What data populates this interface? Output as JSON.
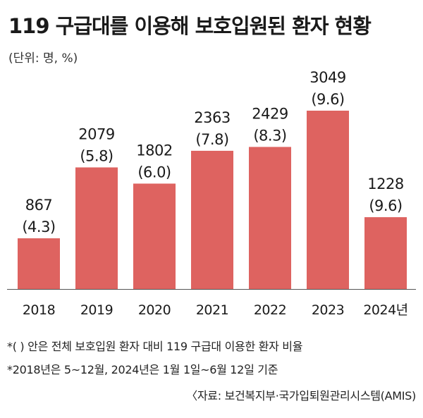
{
  "title": "119 구급대를 이용해 보호입원된 환자 현황",
  "unit": "(단위: 명, %)",
  "notes": [
    "*(  ) 안은 전체 보호입원 환자 대비 119 구급대 이용한 환자 비율",
    "*2018년은 5~12월, 2024년은 1월 1일~6월 12일 기준"
  ],
  "source": "〈자료: 보건복지부·국가입퇴원관리시스템(AMIS)",
  "colors": {
    "bar": "#de6360",
    "axis": "#555555"
  },
  "chart_data": {
    "type": "bar",
    "title": "119 구급대를 이용해 보호입원된 환자 현황",
    "categories": [
      "2018",
      "2019",
      "2020",
      "2021",
      "2022",
      "2023",
      "2024년"
    ],
    "values": [
      867,
      2079,
      1802,
      2363,
      2429,
      3049,
      1228
    ],
    "ratios": [
      "(4.3)",
      "(5.8)",
      "(6.0)",
      "(7.8)",
      "(8.3)",
      "(9.6)",
      "(9.6)"
    ],
    "value_labels": [
      "867",
      "2079",
      "1802",
      "2363",
      "2429",
      "3049",
      "1228"
    ],
    "ylim": [
      0,
      3049
    ],
    "grid": false,
    "legend": "none"
  }
}
